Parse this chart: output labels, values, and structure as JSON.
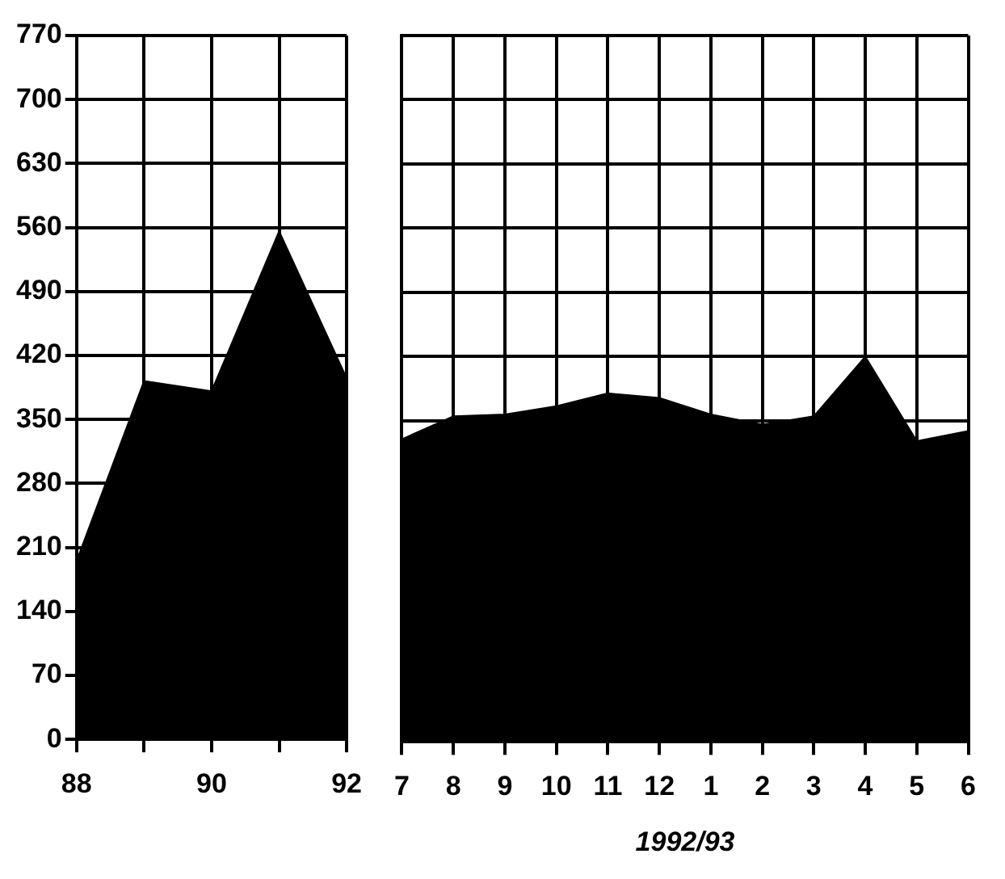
{
  "chart_data": [
    {
      "type": "area",
      "categories": [
        "88",
        null,
        "90",
        null,
        "92"
      ],
      "values": [
        195,
        392,
        381,
        556,
        395
      ],
      "color": "#000000",
      "ylim": [
        0,
        770
      ],
      "yticks": [
        0,
        70,
        140,
        210,
        280,
        350,
        420,
        490,
        560,
        630,
        700,
        770
      ],
      "grid": true
    },
    {
      "type": "area",
      "categories": [
        "7",
        "8",
        "9",
        "10",
        "11",
        "12",
        "1",
        "2",
        "3",
        "4",
        "5",
        "6"
      ],
      "values": [
        330,
        355,
        357,
        366,
        380,
        375,
        357,
        346,
        355,
        420,
        328,
        339
      ],
      "color": "#000000",
      "xlabel": "1992/93",
      "ylim": [
        0,
        770
      ],
      "yticks": [
        0,
        70,
        140,
        210,
        280,
        350,
        420,
        490,
        560,
        630,
        700,
        770
      ],
      "grid": true,
      "tick_labels": "x"
    }
  ]
}
